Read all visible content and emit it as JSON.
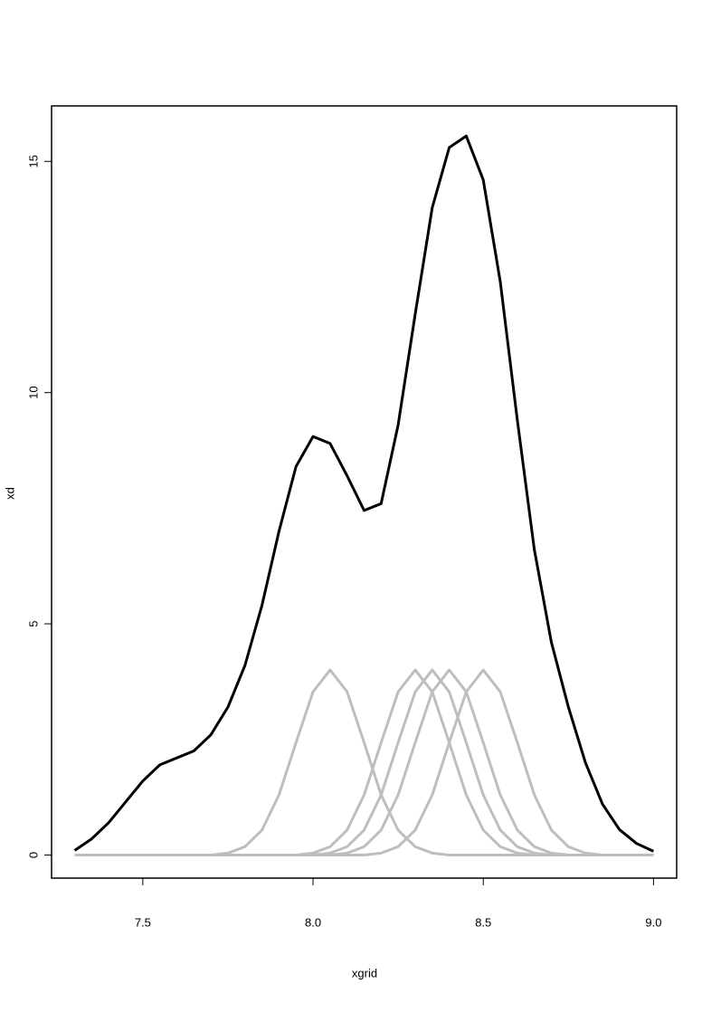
{
  "chart_data": {
    "type": "line",
    "x_label": "xgrid",
    "y_label": "xd",
    "x": [
      7.3,
      7.35,
      7.4,
      7.45,
      7.5,
      7.55,
      7.6,
      7.65,
      7.7,
      7.75,
      7.8,
      7.85,
      7.9,
      7.95,
      8.0,
      8.05,
      8.1,
      8.15,
      8.2,
      8.25,
      8.3,
      8.35,
      8.4,
      8.45,
      8.5,
      8.55,
      8.6,
      8.65,
      8.7,
      8.75,
      8.8,
      8.85,
      8.9,
      8.95,
      9.0
    ],
    "series": [
      {
        "color": "#bebebe",
        "values": [
          0,
          0,
          0,
          0,
          0,
          0,
          0,
          0,
          0,
          0.04,
          0.18,
          0.54,
          1.3,
          2.43,
          3.53,
          4,
          3.53,
          2.43,
          1.3,
          0.54,
          0.18,
          0.04,
          0,
          0,
          0,
          0,
          0,
          0,
          0,
          0,
          0,
          0,
          0,
          0,
          0
        ]
      },
      {
        "color": "#bebebe",
        "values": [
          0,
          0,
          0,
          0,
          0,
          0,
          0,
          0,
          0,
          0,
          0,
          0,
          0,
          0,
          0.04,
          0.18,
          0.54,
          1.3,
          2.43,
          3.53,
          4,
          3.53,
          2.43,
          1.3,
          0.54,
          0.18,
          0.04,
          0,
          0,
          0,
          0,
          0,
          0,
          0,
          0
        ]
      },
      {
        "color": "#bebebe",
        "values": [
          0,
          0,
          0,
          0,
          0,
          0,
          0,
          0,
          0,
          0,
          0,
          0,
          0,
          0,
          0,
          0.04,
          0.18,
          0.54,
          1.3,
          2.43,
          3.53,
          4,
          3.53,
          2.43,
          1.3,
          0.54,
          0.18,
          0.04,
          0,
          0,
          0,
          0,
          0,
          0,
          0
        ]
      },
      {
        "color": "#bebebe",
        "values": [
          0,
          0,
          0,
          0,
          0,
          0,
          0,
          0,
          0,
          0,
          0,
          0,
          0,
          0,
          0,
          0,
          0.04,
          0.18,
          0.54,
          1.3,
          2.43,
          3.53,
          4,
          3.53,
          2.43,
          1.3,
          0.54,
          0.18,
          0.04,
          0,
          0,
          0,
          0,
          0,
          0
        ]
      },
      {
        "color": "#bebebe",
        "values": [
          0,
          0,
          0,
          0,
          0,
          0,
          0,
          0,
          0,
          0,
          0,
          0,
          0,
          0,
          0,
          0,
          0,
          0,
          0.04,
          0.18,
          0.54,
          1.3,
          2.43,
          3.53,
          4,
          3.53,
          2.43,
          1.3,
          0.54,
          0.18,
          0.04,
          0,
          0,
          0,
          0
        ]
      },
      {
        "color": "#000000",
        "values": [
          0.1,
          0.35,
          0.7,
          1.15,
          1.6,
          1.95,
          2.1,
          2.25,
          2.6,
          3.2,
          4.1,
          5.4,
          7.0,
          8.4,
          9.05,
          8.9,
          8.2,
          7.45,
          7.6,
          9.3,
          11.7,
          14.0,
          15.3,
          15.55,
          14.6,
          12.4,
          9.4,
          6.6,
          4.6,
          3.2,
          2.0,
          1.1,
          0.55,
          0.25,
          0.08
        ]
      }
    ],
    "xlim": [
      7.232,
      9.068
    ],
    "ylim": [
      -0.5,
      16.2
    ],
    "xticks": [
      7.5,
      {
        "value": 8,
        "label": "8.0"
      },
      8.5,
      {
        "value": 9,
        "label": "9.0"
      }
    ],
    "yticks": [
      0,
      5,
      10,
      15
    ]
  }
}
